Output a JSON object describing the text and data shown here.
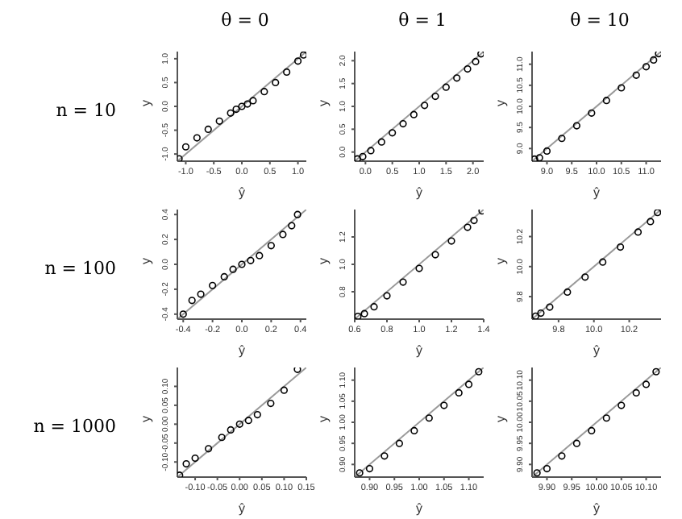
{
  "chart_data": [
    {
      "type": "scatter",
      "title": "θ = 0",
      "annotations": [
        "n = 10"
      ],
      "xlabel": "ŷ",
      "ylabel": "y",
      "xlim": [
        -1.15,
        1.15
      ],
      "ylim": [
        -1.15,
        1.15
      ],
      "xticks": [
        {
          "value": -1,
          "label": "-1.0"
        },
        {
          "value": -0.5,
          "label": "-0.5"
        },
        {
          "value": 0,
          "label": "0.0"
        },
        {
          "value": 0.5,
          "label": "0.5"
        },
        {
          "value": 1,
          "label": "1.0"
        }
      ],
      "yticks": [
        {
          "value": -1,
          "label": "-1.0"
        },
        {
          "value": -0.5,
          "label": "-0.5"
        },
        {
          "value": 0,
          "label": "0.0"
        },
        {
          "value": 0.5,
          "label": "0.5"
        },
        {
          "value": 1,
          "label": "1.0"
        }
      ],
      "series": [
        {
          "type": "scatter",
          "color": "#000000",
          "x": [
            -1.12,
            -1.0,
            -0.8,
            -0.6,
            -0.4,
            -0.2,
            -0.1,
            0.0,
            0.1,
            0.2,
            0.4,
            0.6,
            0.8,
            1.0,
            1.1
          ],
          "values": [
            -1.1,
            -0.85,
            -0.66,
            -0.48,
            -0.31,
            -0.14,
            -0.06,
            0.0,
            0.05,
            0.12,
            0.31,
            0.5,
            0.72,
            0.95,
            1.08
          ],
          "marker": "circle"
        },
        {
          "type": "line",
          "marker": "none",
          "color": "#999999",
          "x": [
            -1.15,
            1.15
          ],
          "values": [
            -1.15,
            1.15
          ]
        }
      ]
    },
    {
      "type": "scatter",
      "title": "θ = 1",
      "xlabel": "ŷ",
      "ylabel": "y",
      "xlim": [
        -0.2,
        2.2
      ],
      "ylim": [
        -0.2,
        2.2
      ],
      "xticks": [
        {
          "value": 0,
          "label": "0.0"
        },
        {
          "value": 0.5,
          "label": "0.5"
        },
        {
          "value": 1,
          "label": "1.0"
        },
        {
          "value": 1.5,
          "label": "1.5"
        },
        {
          "value": 2,
          "label": "2.0"
        }
      ],
      "yticks": [
        {
          "value": 0,
          "label": "0.0"
        },
        {
          "value": 0.5,
          "label": "0.5"
        },
        {
          "value": 1,
          "label": "1.0"
        },
        {
          "value": 1.5,
          "label": "1.5"
        },
        {
          "value": 2,
          "label": "2.0"
        }
      ],
      "series": [
        {
          "type": "scatter",
          "color": "#000000",
          "x": [
            -0.15,
            -0.05,
            0.1,
            0.3,
            0.5,
            0.7,
            0.9,
            1.1,
            1.3,
            1.5,
            1.7,
            1.9,
            2.05,
            2.15
          ],
          "values": [
            -0.15,
            -0.1,
            0.03,
            0.22,
            0.42,
            0.62,
            0.82,
            1.02,
            1.22,
            1.42,
            1.62,
            1.82,
            1.98,
            2.15
          ],
          "marker": "circle"
        },
        {
          "type": "line",
          "marker": "none",
          "color": "#999999",
          "x": [
            -0.2,
            2.2
          ],
          "values": [
            -0.2,
            2.2
          ]
        }
      ]
    },
    {
      "type": "scatter",
      "title": "θ = 10",
      "xlabel": "ŷ",
      "ylabel": "y",
      "xlim": [
        8.7,
        11.3
      ],
      "ylim": [
        8.7,
        11.3
      ],
      "xticks": [
        {
          "value": 9,
          "label": "9.0"
        },
        9.5,
        {
          "value": 10,
          "label": "10.0"
        },
        10.5,
        {
          "value": 11,
          "label": "11.0"
        }
      ],
      "yticks": [
        {
          "value": 9,
          "label": "9.0"
        },
        9.5,
        {
          "value": 10,
          "label": "10.0"
        },
        10.5,
        {
          "value": 11,
          "label": "11.0"
        }
      ],
      "series": [
        {
          "type": "scatter",
          "color": "#000000",
          "x": [
            8.75,
            8.85,
            9.0,
            9.3,
            9.6,
            9.9,
            10.2,
            10.5,
            10.8,
            11.0,
            11.15,
            11.25
          ],
          "values": [
            8.75,
            8.78,
            8.94,
            9.24,
            9.54,
            9.84,
            10.14,
            10.44,
            10.74,
            10.94,
            11.1,
            11.25
          ],
          "marker": "circle"
        },
        {
          "type": "line",
          "marker": "none",
          "color": "#999999",
          "x": [
            8.7,
            11.3
          ],
          "values": [
            8.7,
            11.3
          ]
        }
      ]
    },
    {
      "type": "scatter",
      "annotations": [
        "n = 100"
      ],
      "xlabel": "ŷ",
      "ylabel": "y",
      "xlim": [
        -0.44,
        0.44
      ],
      "ylim": [
        -0.44,
        0.44
      ],
      "xticks": [
        -0.4,
        -0.2,
        {
          "value": 0,
          "label": "0.0"
        },
        0.2,
        0.4
      ],
      "yticks": [
        -0.4,
        -0.2,
        {
          "value": 0,
          "label": "0.0"
        },
        0.2,
        0.4
      ],
      "series": [
        {
          "type": "scatter",
          "color": "#000000",
          "x": [
            -0.4,
            -0.34,
            -0.28,
            -0.2,
            -0.12,
            -0.06,
            0,
            0.06,
            0.12,
            0.2,
            0.28,
            0.34,
            0.38
          ],
          "values": [
            -0.4,
            -0.29,
            -0.24,
            -0.17,
            -0.1,
            -0.04,
            0,
            0.03,
            0.07,
            0.15,
            0.24,
            0.31,
            0.4
          ],
          "marker": "circle"
        },
        {
          "type": "line",
          "marker": "none",
          "color": "#999999",
          "x": [
            -0.44,
            0.44
          ],
          "values": [
            -0.44,
            0.44
          ]
        }
      ]
    },
    {
      "type": "scatter",
      "xlabel": "ŷ",
      "ylabel": "y",
      "xlim": [
        0.6,
        1.4
      ],
      "ylim": [
        0.6,
        1.4
      ],
      "xticks": [
        0.6,
        0.8,
        {
          "value": 1,
          "label": "1.0"
        },
        1.2,
        1.4
      ],
      "yticks": [
        0.8,
        {
          "value": 1,
          "label": "1.0"
        },
        1.2
      ],
      "series": [
        {
          "type": "scatter",
          "color": "#000000",
          "x": [
            0.62,
            0.66,
            0.72,
            0.8,
            0.9,
            1.0,
            1.1,
            1.2,
            1.3,
            1.34,
            1.39
          ],
          "values": [
            0.62,
            0.64,
            0.69,
            0.77,
            0.87,
            0.97,
            1.07,
            1.17,
            1.27,
            1.32,
            1.39
          ],
          "marker": "circle"
        },
        {
          "type": "line",
          "marker": "none",
          "color": "#999999",
          "x": [
            0.6,
            1.4
          ],
          "values": [
            0.6,
            1.4
          ]
        }
      ]
    },
    {
      "type": "scatter",
      "xlabel": "ŷ",
      "ylabel": "y",
      "xlim": [
        9.65,
        10.38
      ],
      "ylim": [
        9.65,
        10.38
      ],
      "xticks": [
        9.8,
        {
          "value": 10,
          "label": "10.0"
        },
        10.2
      ],
      "yticks": [
        9.8,
        {
          "value": 10,
          "label": "10.0"
        },
        10.2
      ],
      "series": [
        {
          "type": "scatter",
          "color": "#000000",
          "x": [
            9.67,
            9.7,
            9.75,
            9.85,
            9.95,
            10.05,
            10.15,
            10.25,
            10.32,
            10.36
          ],
          "values": [
            9.67,
            9.69,
            9.73,
            9.83,
            9.93,
            10.03,
            10.13,
            10.23,
            10.3,
            10.36
          ],
          "marker": "circle"
        },
        {
          "type": "line",
          "marker": "none",
          "color": "#999999",
          "x": [
            9.65,
            10.38
          ],
          "values": [
            9.65,
            10.38
          ]
        }
      ]
    },
    {
      "type": "scatter",
      "annotations": [
        "n = 1000"
      ],
      "xlabel": "ŷ",
      "ylabel": "y",
      "xlim": [
        -0.14,
        0.15
      ],
      "ylim": [
        -0.14,
        0.15
      ],
      "xticks": [
        {
          "value": -0.1,
          "label": "-0.10"
        },
        {
          "value": -0.05,
          "label": "-0.05"
        },
        {
          "value": 0,
          "label": "0.00"
        },
        {
          "value": 0.05,
          "label": "0.05"
        },
        {
          "value": 0.1,
          "label": "0.10"
        },
        {
          "value": 0.15,
          "label": "0.15"
        }
      ],
      "yticks": [
        {
          "value": -0.1,
          "label": "-0.10"
        },
        {
          "value": -0.05,
          "label": "-0.05"
        },
        {
          "value": 0,
          "label": "0.00"
        },
        {
          "value": 0.05,
          "label": "0.05"
        },
        {
          "value": 0.1,
          "label": "0.10"
        }
      ],
      "series": [
        {
          "type": "scatter",
          "color": "#000000",
          "x": [
            -0.135,
            -0.12,
            -0.1,
            -0.07,
            -0.04,
            -0.02,
            0,
            0.02,
            0.04,
            0.07,
            0.1,
            0.13
          ],
          "values": [
            -0.135,
            -0.105,
            -0.09,
            -0.065,
            -0.035,
            -0.015,
            0,
            0.01,
            0.025,
            0.055,
            0.09,
            0.145
          ],
          "marker": "circle"
        },
        {
          "type": "line",
          "marker": "none",
          "color": "#999999",
          "x": [
            -0.14,
            0.15
          ],
          "values": [
            -0.14,
            0.15
          ]
        }
      ]
    },
    {
      "type": "scatter",
      "xlabel": "ŷ",
      "ylabel": "y",
      "xlim": [
        0.87,
        1.13
      ],
      "ylim": [
        0.87,
        1.13
      ],
      "xticks": [
        {
          "value": 0.9,
          "label": "0.90"
        },
        0.95,
        {
          "value": 1,
          "label": "1.00"
        },
        1.05,
        {
          "value": 1.1,
          "label": "1.10"
        }
      ],
      "yticks": [
        {
          "value": 0.9,
          "label": "0.90"
        },
        0.95,
        {
          "value": 1,
          "label": "1.00"
        },
        1.05,
        {
          "value": 1.1,
          "label": "1.10"
        }
      ],
      "series": [
        {
          "type": "scatter",
          "color": "#000000",
          "x": [
            0.88,
            0.9,
            0.93,
            0.96,
            0.99,
            1.02,
            1.05,
            1.08,
            1.1,
            1.12
          ],
          "values": [
            0.88,
            0.89,
            0.92,
            0.95,
            0.98,
            1.01,
            1.04,
            1.07,
            1.09,
            1.12
          ],
          "marker": "circle"
        },
        {
          "type": "line",
          "marker": "none",
          "color": "#999999",
          "x": [
            0.87,
            1.13
          ],
          "values": [
            0.87,
            1.13
          ]
        }
      ]
    },
    {
      "type": "scatter",
      "xlabel": "ŷ",
      "ylabel": "y",
      "xlim": [
        9.87,
        10.13
      ],
      "ylim": [
        9.87,
        10.13
      ],
      "xticks": [
        {
          "value": 9.9,
          "label": "9.90"
        },
        9.95,
        {
          "value": 10,
          "label": "10.00"
        },
        10.05,
        {
          "value": 10.1,
          "label": "10.10"
        }
      ],
      "yticks": [
        {
          "value": 9.9,
          "label": "9.90"
        },
        9.95,
        {
          "value": 10,
          "label": "10.00"
        },
        10.05,
        {
          "value": 10.1,
          "label": "10.10"
        }
      ],
      "series": [
        {
          "type": "scatter",
          "color": "#000000",
          "x": [
            9.88,
            9.9,
            9.93,
            9.96,
            9.99,
            10.02,
            10.05,
            10.08,
            10.1,
            10.12
          ],
          "values": [
            9.88,
            9.89,
            9.92,
            9.95,
            9.98,
            10.01,
            10.04,
            10.07,
            10.09,
            10.12
          ],
          "marker": "circle"
        },
        {
          "type": "line",
          "marker": "none",
          "color": "#999999",
          "x": [
            9.87,
            10.13
          ],
          "values": [
            9.87,
            10.13
          ]
        }
      ]
    }
  ]
}
